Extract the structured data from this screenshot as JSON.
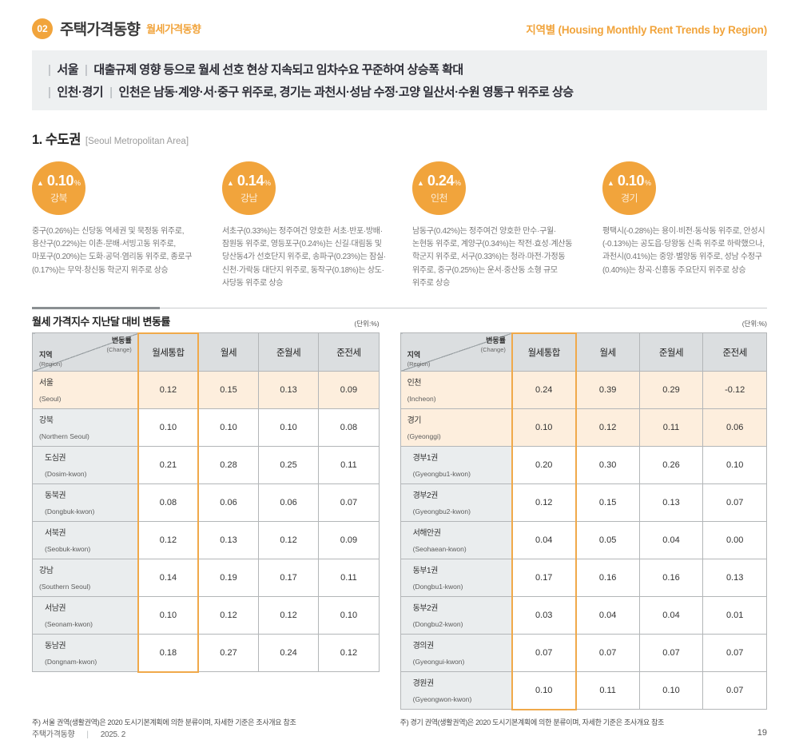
{
  "colors": {
    "accent_orange": "#F1A43C",
    "highlight_row_bg": "#FDEEDD",
    "table_header_bg": "#DBDEE0",
    "label_cell_bg": "#EAEDEE",
    "summary_box_bg": "#EEF0F1",
    "table_border": "#B3B6B8"
  },
  "header": {
    "chapter_number": "02",
    "title": "주택가격동향",
    "subtitle": "월세가격동향",
    "right_title": "지역별 (Housing Monthly Rent Trends by Region)"
  },
  "summary": {
    "items": [
      {
        "region": "서울",
        "text": "대출규제 영향 등으로 월세 선호 현상 지속되고 임차수요 꾸준하여 상승폭 확대"
      },
      {
        "region": "인천·경기",
        "text": "인천은 남동·계양·서·중구 위주로, 경기는 과천시·성남 수정·고양 일산서·수원 영통구 위주로 상승"
      }
    ]
  },
  "section": {
    "title": "1. 수도권",
    "subtitle": "[Seoul Metropolitan Area]"
  },
  "stats": [
    {
      "arrow": "▲",
      "value": "0.10",
      "unit": "%",
      "region": "강북",
      "description": "중구(0.26%)는 신당동 역세권 및 묵정동 위주로, 용산구(0.22%)는 이촌·문배·서빙고동 위주로, 마포구(0.20%)는 도화·공덕·염리동 위주로, 종로구(0.17%)는 무악·창신동 학군지 위주로 상승"
    },
    {
      "arrow": "▲",
      "value": "0.14",
      "unit": "%",
      "region": "강남",
      "description": "서초구(0.33%)는 정주여건 양호한 서초·반포·방배·잠원동 위주로, 영등포구(0.24%)는 신길·대림동 및 당산동4가 선호단지 위주로, 송파구(0.23%)는 잠실·신천·가락동 대단지 위주로, 동작구(0.18%)는 상도·사당동 위주로 상승"
    },
    {
      "arrow": "▲",
      "value": "0.24",
      "unit": "%",
      "region": "인천",
      "description": "남동구(0.42%)는 정주여건 양호한 만수·구월·논현동 위주로, 계양구(0.34%)는 작전·효성·계산동 학군지 위주로, 서구(0.33%)는 청라·마전·가정동 위주로, 중구(0.25%)는 운서·중산동 소형 규모 위주로 상승"
    },
    {
      "arrow": "▲",
      "value": "0.10",
      "unit": "%",
      "region": "경기",
      "description": "평택시(-0.28%)는 용이·비전·동삭동 위주로, 안성시(-0.13%)는 공도읍·당왕동 신축 위주로 하락했으나, 과천시(0.41%)는 중앙·별양동 위주로, 성남 수정구(0.40%)는 창곡·신흥동 주요단지 위주로 상승"
    }
  ],
  "tables": [
    {
      "title": "월세 가격지수 지난달 대비 변동률",
      "unit": "(단위:%)",
      "corner": {
        "top": "변동률",
        "top_en": "(Change)",
        "bottom": "지역",
        "bottom_en": "(Region)"
      },
      "columns": [
        "월세통합",
        "월세",
        "준월세",
        "준전세"
      ],
      "rows": [
        {
          "kr": "서울",
          "en": "(Seoul)",
          "type": "highlight",
          "values": [
            "0.12",
            "0.15",
            "0.13",
            "0.09"
          ]
        },
        {
          "kr": "강북",
          "en": "(Northern Seoul)",
          "type": "main",
          "values": [
            "0.10",
            "0.10",
            "0.10",
            "0.08"
          ]
        },
        {
          "kr": "도심권",
          "en": "(Dosim-kwon)",
          "type": "sub",
          "values": [
            "0.21",
            "0.28",
            "0.25",
            "0.11"
          ]
        },
        {
          "kr": "동북권",
          "en": "(Dongbuk-kwon)",
          "type": "sub",
          "values": [
            "0.08",
            "0.06",
            "0.06",
            "0.07"
          ]
        },
        {
          "kr": "서북권",
          "en": "(Seobuk-kwon)",
          "type": "sub",
          "values": [
            "0.12",
            "0.13",
            "0.12",
            "0.09"
          ]
        },
        {
          "kr": "강남",
          "en": "(Southern Seoul)",
          "type": "main",
          "values": [
            "0.14",
            "0.19",
            "0.17",
            "0.11"
          ]
        },
        {
          "kr": "서남권",
          "en": "(Seonam-kwon)",
          "type": "sub",
          "values": [
            "0.10",
            "0.12",
            "0.12",
            "0.10"
          ]
        },
        {
          "kr": "동남권",
          "en": "(Dongnam-kwon)",
          "type": "sub",
          "values": [
            "0.18",
            "0.27",
            "0.24",
            "0.12"
          ]
        }
      ],
      "footnote": "주) 서울 권역(생활권역)은 2020 도시기본계획에 의한 분류이며, 자세한 기준은 조사개요 참조"
    },
    {
      "title": "",
      "unit": "(단위:%)",
      "corner": {
        "top": "변동률",
        "top_en": "(Change)",
        "bottom": "지역",
        "bottom_en": "(Region)"
      },
      "columns": [
        "월세통합",
        "월세",
        "준월세",
        "준전세"
      ],
      "rows": [
        {
          "kr": "인천",
          "en": "(Incheon)",
          "type": "highlight",
          "values": [
            "0.24",
            "0.39",
            "0.29",
            "-0.12"
          ]
        },
        {
          "kr": "경기",
          "en": "(Gyeonggi)",
          "type": "highlight",
          "values": [
            "0.10",
            "0.12",
            "0.11",
            "0.06"
          ]
        },
        {
          "kr": "경부1권",
          "en": "(Gyeongbu1-kwon)",
          "type": "sub",
          "values": [
            "0.20",
            "0.30",
            "0.26",
            "0.10"
          ]
        },
        {
          "kr": "경부2권",
          "en": "(Gyeongbu2-kwon)",
          "type": "sub",
          "values": [
            "0.12",
            "0.15",
            "0.13",
            "0.07"
          ]
        },
        {
          "kr": "서해안권",
          "en": "(Seohaean-kwon)",
          "type": "sub",
          "values": [
            "0.04",
            "0.05",
            "0.04",
            "0.00"
          ]
        },
        {
          "kr": "동부1권",
          "en": "(Dongbu1-kwon)",
          "type": "sub",
          "values": [
            "0.17",
            "0.16",
            "0.16",
            "0.13"
          ]
        },
        {
          "kr": "동부2권",
          "en": "(Dongbu2-kwon)",
          "type": "sub",
          "values": [
            "0.03",
            "0.04",
            "0.04",
            "0.01"
          ]
        },
        {
          "kr": "경의권",
          "en": "(Gyeongui-kwon)",
          "type": "sub",
          "values": [
            "0.07",
            "0.07",
            "0.07",
            "0.07"
          ]
        },
        {
          "kr": "경원권",
          "en": "(Gyeongwon-kwon)",
          "type": "sub",
          "values": [
            "0.10",
            "0.11",
            "0.10",
            "0.07"
          ]
        }
      ],
      "footnote": "주) 경기 권역(생활권역)은 2020 도시기본계획에 의한 분류이며, 자세한 기준은 조사개요 참조"
    }
  ],
  "footer": {
    "left_title": "주택가격동향",
    "separator": "|",
    "date": "2025. 2",
    "page_number": "19"
  }
}
